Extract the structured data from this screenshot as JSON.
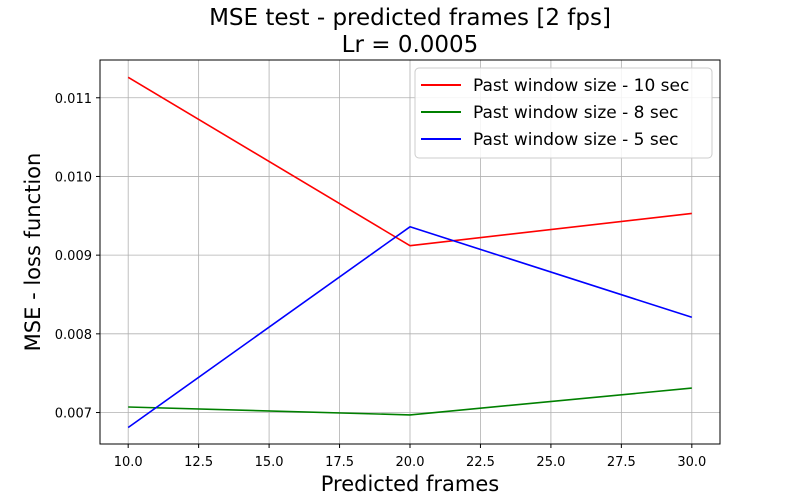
{
  "chart_data": {
    "type": "line",
    "title": "MSE test - predicted frames [2 fps]",
    "subtitle": "Lr = 0.0005",
    "xlabel": "Predicted frames",
    "ylabel": "MSE - loss function",
    "x": [
      10,
      20,
      30
    ],
    "xlim": [
      9.0,
      31.0
    ],
    "ylim": [
      0.0066,
      0.01148
    ],
    "x_ticks": [
      "10.0",
      "12.5",
      "15.0",
      "17.5",
      "20.0",
      "22.5",
      "25.0",
      "27.5",
      "30.0"
    ],
    "y_ticks": [
      "0.007",
      "0.008",
      "0.009",
      "0.010",
      "0.011"
    ],
    "grid": true,
    "legend_position": "top-right",
    "series": [
      {
        "name": "Past window size - 10 sec",
        "color": "#ff0000",
        "values": [
          0.01126,
          0.00912,
          0.00953
        ]
      },
      {
        "name": "Past window size - 8 sec",
        "color": "#008000",
        "values": [
          0.00707,
          0.00697,
          0.00731
        ]
      },
      {
        "name": "Past window size - 5 sec",
        "color": "#0000ff",
        "values": [
          0.00681,
          0.00936,
          0.00821
        ]
      }
    ]
  }
}
